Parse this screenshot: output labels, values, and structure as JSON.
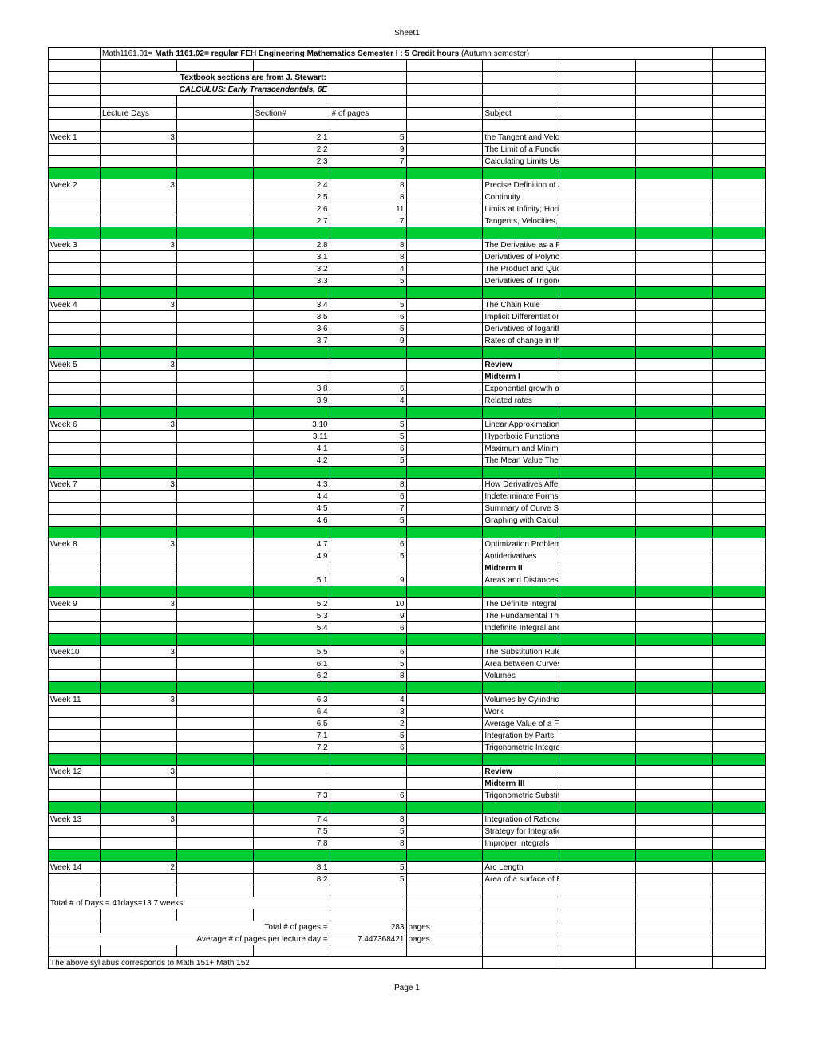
{
  "sheet_title": "Sheet1",
  "page_footer": "Page 1",
  "colors": {
    "green": "#00cc33",
    "border": "#000000",
    "bg": "#ffffff"
  },
  "header": {
    "course_prefix": "Math1161.01= ",
    "course_bold": "Math 1161.02= regular FEH Engineering Mathematics Semester I : 5 Credit hours",
    "course_suffix": "  (Autumn semester)",
    "textbook_line1": "Textbook sections are from J. Stewart:",
    "textbook_line2": "CALCULUS: Early Transcendentals, 6E"
  },
  "col_headings": {
    "lecture_days": "Lecture Days",
    "section": "Section#",
    "pages": "# of pages",
    "subject": "Subject"
  },
  "weeks": [
    {
      "label": "Week 1",
      "days": "3",
      "rows": [
        {
          "section": "2.1",
          "pages": "5",
          "subject": "the Tangent and Velocity Problems"
        },
        {
          "section": "2.2",
          "pages": "9",
          "subject": "The Limit of a Function"
        },
        {
          "section": "2.3",
          "pages": "7",
          "subject": "Calculating Limits Using the Limit Laws"
        }
      ]
    },
    {
      "label": "Week 2",
      "days": "3",
      "rows": [
        {
          "section": "2.4",
          "pages": "8",
          "subject": "Precise Definition of a Limit"
        },
        {
          "section": "2.5",
          "pages": "8",
          "subject": "Continuity"
        },
        {
          "section": "2.6",
          "pages": "11",
          "subject": "Limits at Infinity; Horizontal Asymptodes"
        },
        {
          "section": "2.7",
          "pages": "7",
          "subject": "Tangents, Velocities, and Other Rates of Change"
        }
      ]
    },
    {
      "label": "Week 3",
      "days": "3",
      "rows": [
        {
          "section": "2.8",
          "pages": "8",
          "subject": "The Derivative as a Function"
        },
        {
          "section": "3.1",
          "pages": "8",
          "subject": "Derivatives of Polynomials and of Exponentials"
        },
        {
          "section": "3.2",
          "pages": "4",
          "subject": "The Product and Quotient Rules"
        },
        {
          "section": "3.3",
          "pages": "5",
          "subject": "Derivatives of Trigonometric Functions"
        }
      ]
    },
    {
      "label": "Week 4",
      "days": "3",
      "rows": [
        {
          "section": "3.4",
          "pages": "5",
          "subject": "The Chain Rule"
        },
        {
          "section": "3.5",
          "pages": "6",
          "subject": "Implicit Differentiation"
        },
        {
          "section": "3.6",
          "pages": "5",
          "subject": "Derivatives of logarithmic functions"
        },
        {
          "section": "3.7",
          "pages": "9",
          "subject": "Rates of change in the sciences"
        }
      ]
    },
    {
      "label": "Week 5",
      "days": "3",
      "rows": [
        {
          "section": "",
          "pages": "",
          "subject": "Review",
          "bold": true
        },
        {
          "section": "",
          "pages": "",
          "subject": "Midterm I",
          "bold": true
        },
        {
          "section": "3.8",
          "pages": "6",
          "subject": "Exponential growth and decay"
        },
        {
          "section": "3.9",
          "pages": "4",
          "subject": "Related rates"
        }
      ]
    },
    {
      "label": "Week 6",
      "days": "3",
      "rows": [
        {
          "section": "3.10",
          "pages": "5",
          "subject": "Linear Approximations and Differentials"
        },
        {
          "section": "3.11",
          "pages": "5",
          "subject": "Hyperbolic Functions"
        },
        {
          "section": "4.1",
          "pages": "6",
          "subject": "Maximum and Minimum Values"
        },
        {
          "section": "4.2",
          "pages": "5",
          "subject": "The Mean Value Theorem"
        }
      ]
    },
    {
      "label": "Week 7",
      "days": "3",
      "rows": [
        {
          "section": "4.3",
          "pages": "8",
          "subject": "How Derivatives Affect the Shape of a Graph"
        },
        {
          "section": "4.4",
          "pages": "6",
          "subject": "Indeterminate Forms and L'Hospital's Rule"
        },
        {
          "section": "4.5",
          "pages": "7",
          "subject": "Summary of Curve Sketching"
        },
        {
          "section": "4.6",
          "pages": "5",
          "subject_html": "Graphing with Calculus <i>and</i> Calculators"
        }
      ]
    },
    {
      "label": "Week 8",
      "days": "3",
      "rows": [
        {
          "section": "4.7",
          "pages": "6",
          "subject": "Optimization Problems"
        },
        {
          "section": "4.9",
          "pages": "5",
          "subject": "Antiderivatives"
        },
        {
          "section": "",
          "pages": "",
          "subject": "Midterm II",
          "bold": true
        },
        {
          "section": "5.1",
          "pages": "9",
          "subject": "Areas and Distances"
        }
      ]
    },
    {
      "label": "Week 9",
      "days": "3",
      "rows": [
        {
          "section": "5.2",
          "pages": "10",
          "subject": "The Definite Integral"
        },
        {
          "section": "5.3",
          "pages": "9",
          "subject": "The Fundamental Theorem of Calculus"
        },
        {
          "section": "5.4",
          "pages": "6",
          "subject": "Indefinite Integral and the Net Change Theorem"
        }
      ]
    },
    {
      "label": "Week10",
      "days": "3",
      "rows": [
        {
          "section": "5.5",
          "pages": "6",
          "subject": "The Substitution Rule"
        },
        {
          "section": "6.1",
          "pages": "5",
          "subject": "Area between Curves"
        },
        {
          "section": "6.2",
          "pages": "8",
          "subject": "Volumes"
        }
      ]
    },
    {
      "label": "Week 11",
      "days": "3",
      "rows": [
        {
          "section": "6.3",
          "pages": "4",
          "subject": "Volumes by Cylindrical Shells"
        },
        {
          "section": "6.4",
          "pages": "3",
          "subject": "Work"
        },
        {
          "section": "6.5",
          "pages": "2",
          "subject": "Average Value of a Function"
        },
        {
          "section": "7.1",
          "pages": "5",
          "subject": "Integration by Parts"
        },
        {
          "section": "7.2",
          "pages": "6",
          "subject": "Trigonometric Integrals"
        }
      ]
    },
    {
      "label": "Week 12",
      "days": "3",
      "rows": [
        {
          "section": "",
          "pages": "",
          "subject": "Review",
          "bold": true
        },
        {
          "section": "",
          "pages": "",
          "subject": "Midterm III",
          "bold": true
        },
        {
          "section": "7.3",
          "pages": "6",
          "subject": "Trigonometric Substitutions"
        }
      ]
    },
    {
      "label": "Week 13",
      "days": "3",
      "rows": [
        {
          "section": "7.4",
          "pages": "8",
          "subject": "Integration of Rational Function"
        },
        {
          "section": "7.5",
          "pages": "5",
          "subject": "Strategy for Integration"
        },
        {
          "section": "7.8",
          "pages": "8",
          "subject": "Improper Integrals"
        }
      ]
    },
    {
      "label": "Week 14",
      "days": "2",
      "rows": [
        {
          "section": "8.1",
          "pages": "5",
          "subject": "Arc Length"
        },
        {
          "section": "8.2",
          "pages": "5",
          "subject": "Area of a surface of Revolution"
        }
      ]
    }
  ],
  "totals": {
    "days_line": "Total # of Days = 41days=13.7 weeks",
    "pages_label": "Total # of pages =",
    "pages_value": "283",
    "pages_unit": "pages",
    "avg_label": "Average # of pages per lecture day =",
    "avg_value": "7.447368421",
    "avg_unit": "pages",
    "correspondence": "The above syllabus corresponds to Math 151+ Math 152"
  }
}
